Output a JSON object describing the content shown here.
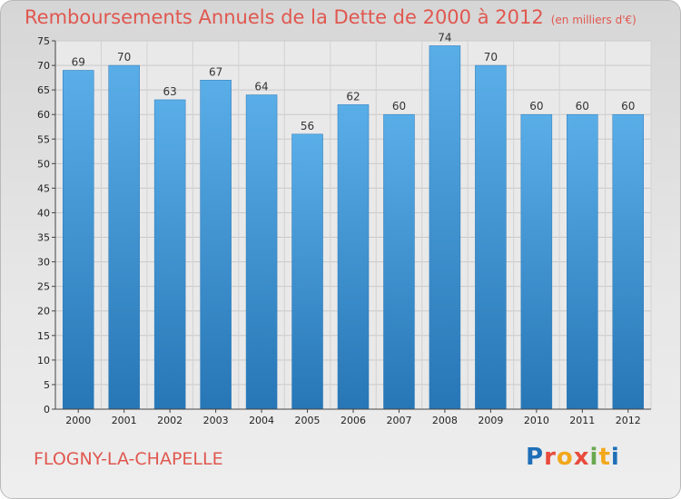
{
  "chart_data": {
    "type": "bar",
    "title": "Remboursements Annuels de la Dette de 2000 à 2012",
    "subtitle": "(en milliers d'€)",
    "categories": [
      "2000",
      "2001",
      "2002",
      "2003",
      "2004",
      "2005",
      "2006",
      "2007",
      "2008",
      "2009",
      "2010",
      "2011",
      "2012"
    ],
    "values": [
      69,
      70,
      63,
      67,
      64,
      56,
      62,
      60,
      74,
      70,
      60,
      60,
      60
    ],
    "xlabel": "",
    "ylabel": "",
    "ylim": [
      0,
      75
    ],
    "yticks": [
      0,
      5,
      10,
      15,
      20,
      25,
      30,
      35,
      40,
      45,
      50,
      55,
      60,
      65,
      70,
      75
    ],
    "grid": true,
    "bar_color": "#3f94d4"
  },
  "footer": {
    "city": "FLOGNY-LA-CHAPELLE",
    "brand_letters": [
      {
        "char": "P",
        "color": "#1f6fb8"
      },
      {
        "char": "r",
        "color": "#e94b3c"
      },
      {
        "char": "o",
        "color": "#f2a81d"
      },
      {
        "char": "x",
        "color": "#e94b3c"
      },
      {
        "char": "i",
        "color": "#6aa84f"
      },
      {
        "char": "t",
        "color": "#f2a81d"
      },
      {
        "char": "i",
        "color": "#1f6fb8"
      }
    ]
  }
}
